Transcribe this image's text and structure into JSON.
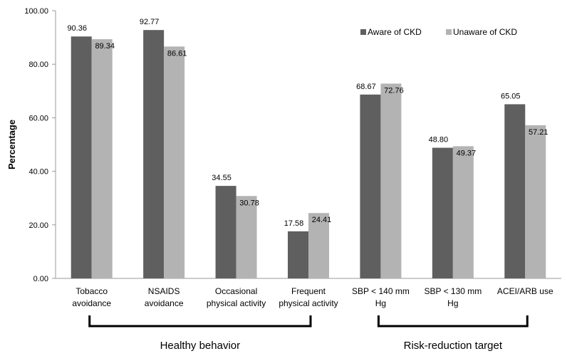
{
  "chart_data": {
    "type": "bar",
    "ylabel": "Percentage",
    "ylim": [
      0,
      100
    ],
    "y_ticks": [
      "0.00",
      "20.00",
      "40.00",
      "60.00",
      "80.00",
      "100.00"
    ],
    "grid": false,
    "legend_position": "top-right",
    "categories": [
      [
        "Tobacco",
        "avoidance"
      ],
      [
        "NSAIDS",
        "avoidance"
      ],
      [
        "Occasional",
        "physical activity"
      ],
      [
        "Frequent",
        "physical activity"
      ],
      [
        "SBP < 140 mm",
        "Hg"
      ],
      [
        "SBP < 130 mm",
        "Hg"
      ],
      [
        "ACEI/ARB use"
      ]
    ],
    "series": [
      {
        "name": "Aware of CKD",
        "color": "#5f5f5f",
        "values": [
          90.36,
          92.77,
          34.55,
          17.58,
          68.67,
          48.8,
          65.05
        ],
        "labels": [
          "90.36",
          "92.77",
          "34.55",
          "17.58",
          "68.67",
          "48.80",
          "65.05"
        ]
      },
      {
        "name": "Unaware of CKD",
        "color": "#b3b3b3",
        "values": [
          89.34,
          86.61,
          30.78,
          24.41,
          72.76,
          49.37,
          57.21
        ],
        "labels": [
          "89.34",
          "86.61",
          "30.78",
          "24.41",
          "72.76",
          "49.37",
          "57.21"
        ]
      }
    ],
    "groups": [
      {
        "label": "Healthy behavior",
        "from": 0,
        "to": 3
      },
      {
        "label": "Risk-reduction target",
        "from": 4,
        "to": 6
      }
    ]
  }
}
